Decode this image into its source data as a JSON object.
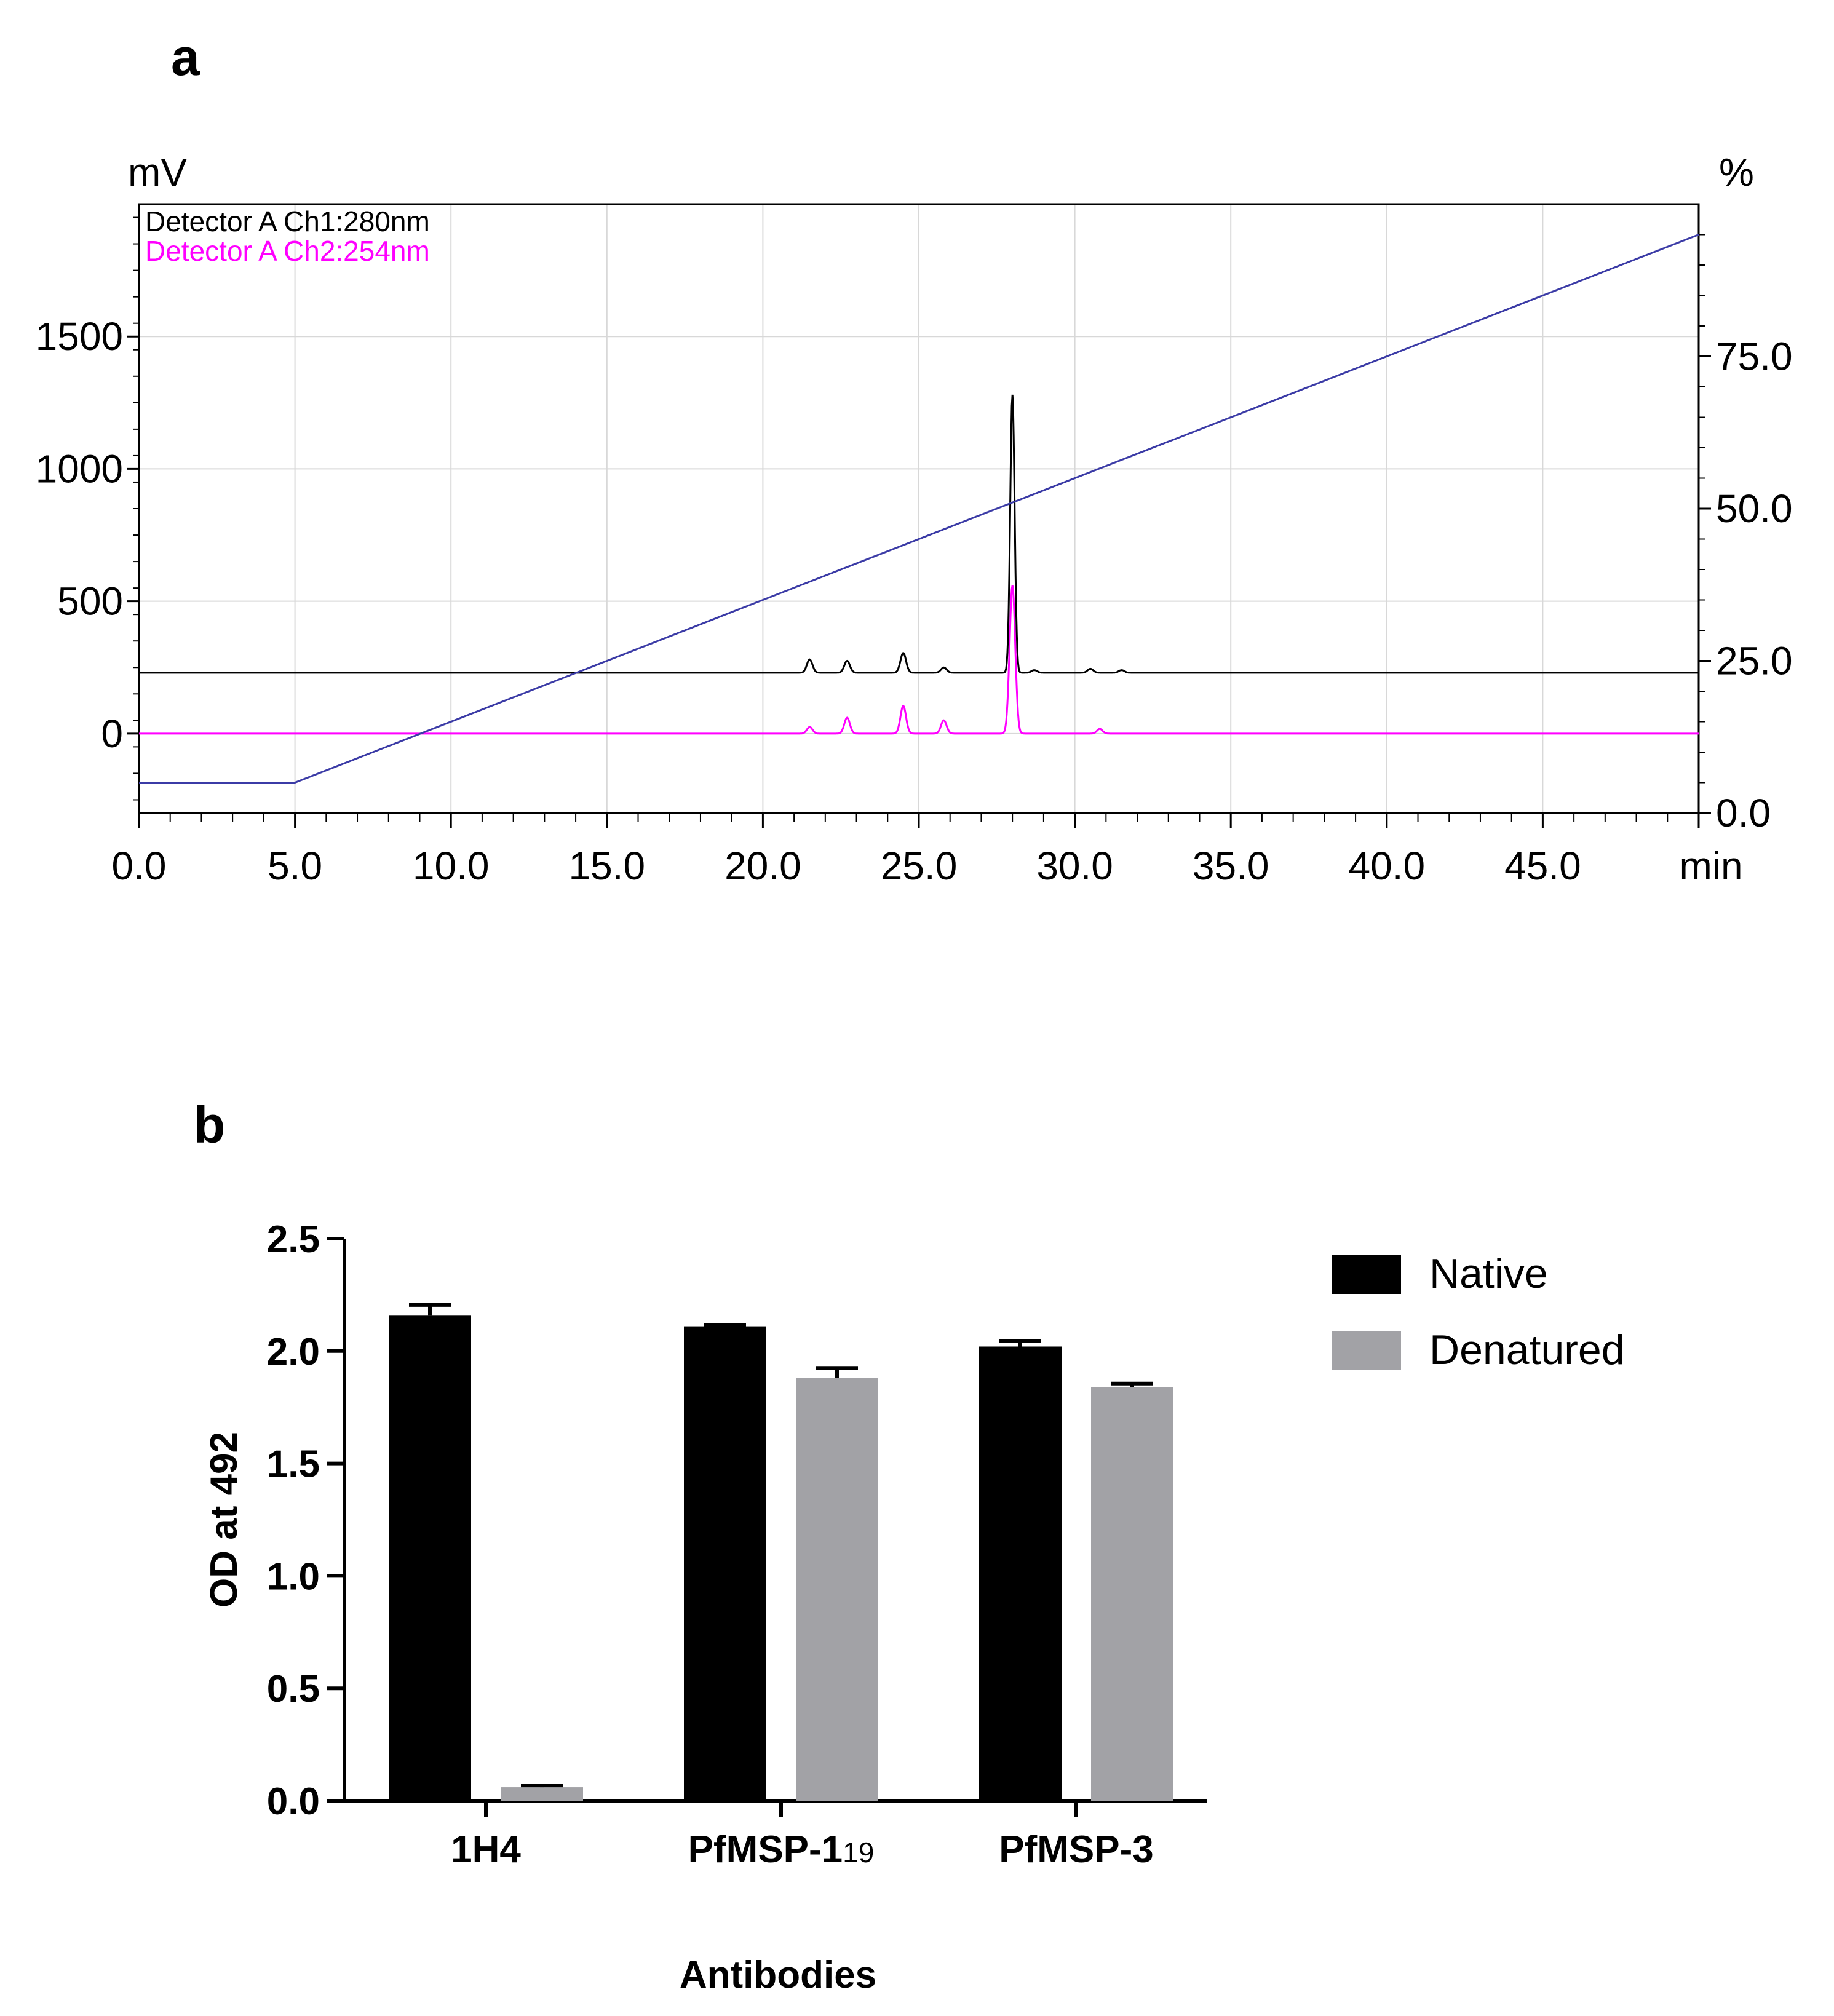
{
  "panel_a_label": "a",
  "panel_b_label": "b",
  "chart_data": [
    {
      "type": "line",
      "y_left_unit": "mV",
      "y_right_unit": "%",
      "x_unit": "min",
      "xlim": [
        0,
        50
      ],
      "ylim_left": [
        -300,
        2000
      ],
      "ylim_right": [
        0,
        100
      ],
      "x_ticks": [
        "0.0",
        "5.0",
        "10.0",
        "15.0",
        "20.0",
        "25.0",
        "30.0",
        "35.0",
        "40.0",
        "45.0"
      ],
      "y_left_ticks": [
        "1500",
        "1000",
        "500",
        "0"
      ],
      "y_right_ticks": [
        "75.0",
        "50.0",
        "25.0",
        "0.0"
      ],
      "grid": true,
      "legend_position": "top-left",
      "series": [
        {
          "name": "Detector A Ch1:280nm",
          "color": "#000000",
          "baseline": 230,
          "peaks": [
            {
              "x": 21.5,
              "y": 280
            },
            {
              "x": 22.7,
              "y": 275
            },
            {
              "x": 24.5,
              "y": 305
            },
            {
              "x": 25.8,
              "y": 250
            },
            {
              "x": 28.0,
              "y": 1280
            },
            {
              "x": 28.7,
              "y": 240
            },
            {
              "x": 30.5,
              "y": 245
            },
            {
              "x": 31.5,
              "y": 240
            }
          ]
        },
        {
          "name": "Detector A Ch2:254nm",
          "color": "#ff00ff",
          "baseline": 0,
          "peaks": [
            {
              "x": 21.5,
              "y": 25
            },
            {
              "x": 22.7,
              "y": 60
            },
            {
              "x": 24.5,
              "y": 105
            },
            {
              "x": 25.8,
              "y": 50
            },
            {
              "x": 28.0,
              "y": 560
            },
            {
              "x": 30.8,
              "y": 18
            }
          ]
        },
        {
          "name": "gradient",
          "axis": "right",
          "color": "#3b3ba6",
          "points": [
            [
              0,
              5
            ],
            [
              5,
              5
            ],
            [
              50,
              95
            ]
          ]
        }
      ]
    },
    {
      "type": "bar",
      "ylabel": "OD at 492",
      "xlabel": "Antibodies",
      "ylim": [
        0,
        2.5
      ],
      "y_ticks": [
        "0.0",
        "0.5",
        "1.0",
        "1.5",
        "2.0",
        "2.5"
      ],
      "categories": [
        {
          "label": "1H4",
          "sub": ""
        },
        {
          "label": "PfMSP-1",
          "sub": "19"
        },
        {
          "label": "PfMSP-3",
          "sub": ""
        }
      ],
      "legend_position": "top-right",
      "series": [
        {
          "name": "Native",
          "color": "#000000",
          "values": [
            2.16,
            2.11,
            2.02
          ],
          "errors": [
            0.045,
            0.005,
            0.025
          ]
        },
        {
          "name": "Denatured",
          "color": "#a2a2a6",
          "values": [
            0.06,
            1.88,
            1.84
          ],
          "errors": [
            0.008,
            0.045,
            0.015
          ]
        }
      ]
    }
  ]
}
